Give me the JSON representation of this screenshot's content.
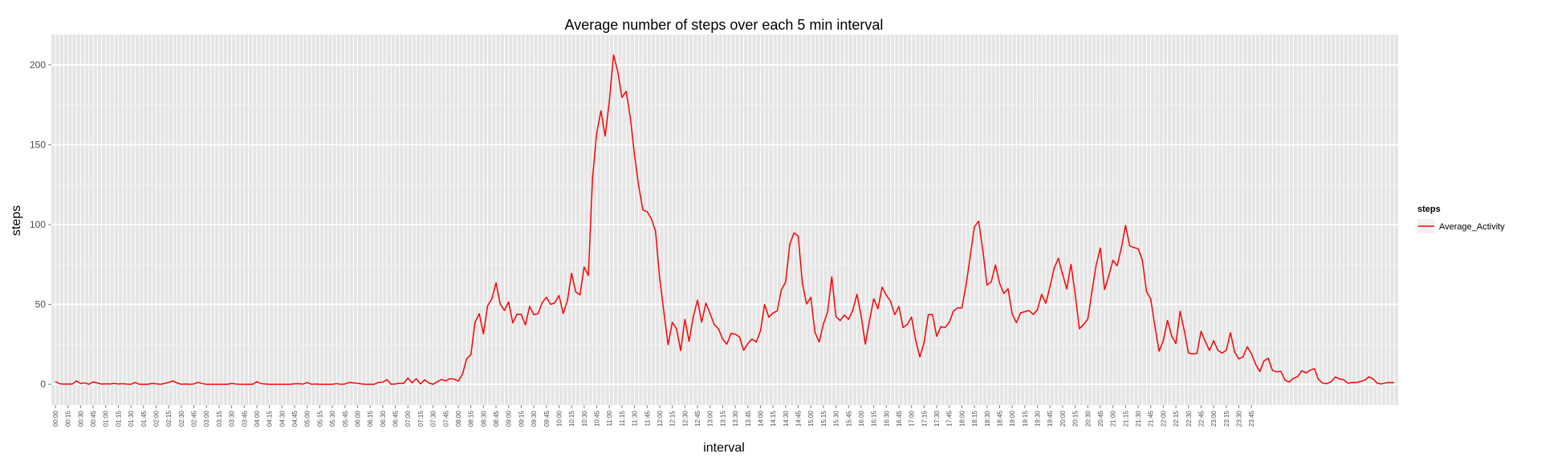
{
  "chart_data": {
    "type": "line",
    "title": "Average number of steps over each 5 min interval",
    "xlabel": "interval",
    "ylabel": "steps",
    "ylim": [
      -13,
      219
    ],
    "yticks": [
      0,
      50,
      100,
      150,
      200
    ],
    "grid": true,
    "legend": {
      "title": "steps",
      "placement": "right",
      "entries": [
        "Average_Activity"
      ]
    },
    "series": [
      {
        "name": "Average_Activity",
        "color": "#ff0000",
        "values": [
          1.7,
          0.3,
          0.1,
          0.2,
          0.1,
          2.1,
          0.5,
          0.9,
          0,
          1.5,
          0.8,
          0.1,
          0.3,
          0.2,
          0.5,
          0.2,
          0.4,
          0.1,
          0,
          1.1,
          0,
          0,
          0,
          0.5,
          0.3,
          0,
          0.5,
          1.2,
          2.1,
          0.8,
          0,
          0.2,
          0,
          0.2,
          1.2,
          0.4,
          0,
          0,
          0,
          0,
          0,
          0,
          0.5,
          0.2,
          0,
          0,
          0,
          0,
          1.6,
          0.4,
          0.2,
          0,
          0,
          0,
          0,
          0,
          0,
          0.3,
          0.4,
          0.1,
          1.1,
          0,
          0.2,
          0,
          0,
          0,
          0,
          0.4,
          0,
          0.2,
          1.1,
          0.9,
          0.6,
          0.2,
          0,
          0,
          0,
          1.2,
          1.3,
          2.9,
          0,
          0.2,
          0.7,
          0.5,
          3.9,
          0.9,
          3.5,
          0.2,
          2.8,
          0.8,
          0,
          1.6,
          3,
          2.1,
          3.5,
          3.2,
          2,
          6.3,
          16,
          18.5,
          38.9,
          44.2,
          31.6,
          49.2,
          53.5,
          63.5,
          50.2,
          46.2,
          51.6,
          38.4,
          43.9,
          43.8,
          37.2,
          48.7,
          43.6,
          44.2,
          51.1,
          54.5,
          50,
          51,
          55.6,
          44.3,
          52.3,
          69.5,
          57.8,
          56,
          73.4,
          68.2,
          129.4,
          157.5,
          171.2,
          155.4,
          177.3,
          206.2,
          195.9,
          179.6,
          183.4,
          167,
          143.5,
          124,
          109.1,
          108.1,
          103.7,
          95.9,
          66.2,
          45.2,
          24.8,
          38.8,
          34.8,
          21.1,
          40.6,
          26.9,
          42.4,
          52.7,
          38.9,
          50.8,
          44.3,
          37.4,
          34.7,
          28.3,
          25.1,
          31.9,
          31.4,
          29.7,
          21.3,
          25.5,
          28.3,
          26.5,
          33.4,
          49.9,
          42,
          44.6,
          46,
          59.2,
          63.9,
          87.7,
          94.8,
          92.8,
          63.4,
          50.2,
          54.5,
          32.4,
          26.5,
          37.7,
          45.1,
          67.3,
          42.3,
          39.9,
          43.3,
          40.7,
          46.2,
          56.4,
          42.8,
          25.1,
          40,
          53.5,
          47.3,
          60.8,
          55.8,
          51.9,
          43.6,
          48.7,
          35.5,
          37.5,
          42.1,
          27.5,
          17.1,
          26.1,
          43.6,
          43.7,
          30,
          36.1,
          35.5,
          38.8,
          45.9,
          47.8,
          47.8,
          62.1,
          80.3,
          98.7,
          102.1,
          83.9,
          62.1,
          64.1,
          74.7,
          63.2,
          56.9,
          59.8,
          43.9,
          38.6,
          44.7,
          45.5,
          46.2,
          43.7,
          46.6,
          56.3,
          50.7,
          61.2,
          72.7,
          78.9,
          68.9,
          59.7,
          75.1,
          56.5,
          34.8,
          37.5,
          40.7,
          58,
          74.7,
          85.3,
          59.3,
          67.8,
          77.7,
          74.2,
          85.3,
          99.5,
          86.6,
          85.6,
          84.9,
          77.8,
          58,
          53.4,
          36.3,
          20.7,
          27.4,
          40,
          30.2,
          25.5,
          45.7,
          33.5,
          19.6,
          19,
          19.3,
          33.2,
          26.8,
          21.2,
          27.3,
          21.3,
          19.5,
          21.3,
          32.3,
          20.2,
          15.9,
          17.2,
          23.5,
          19.2,
          12.5,
          8,
          14.7,
          16.3,
          8.7,
          7.8,
          8.1,
          2.6,
          1.4,
          3.7,
          4.8,
          8.5,
          7.1,
          8.8,
          9.8,
          2.9,
          0.7,
          0.4,
          1.6,
          4.6,
          3.3,
          2.8,
          0.6,
          1.2,
          1.1,
          1.8,
          2.6,
          4.7,
          3.3,
          0.6,
          0.2,
          0.9,
          1.1,
          1
        ]
      }
    ],
    "tick_labels": [
      "00:00",
      "00:15",
      "00:30",
      "00:45",
      "01:00",
      "01:15",
      "01:30",
      "01:45",
      "02:00",
      "02:15",
      "02:30",
      "02:45",
      "03:00",
      "03:15",
      "03:30",
      "03:45",
      "04:00",
      "04:15",
      "04:30",
      "04:45",
      "05:00",
      "05:15",
      "05:30",
      "05:45",
      "06:00",
      "06:15",
      "06:30",
      "06:45",
      "07:00",
      "07:15",
      "07:30",
      "07:45",
      "08:00",
      "08:15",
      "08:30",
      "08:45",
      "09:00",
      "09:15",
      "09:30",
      "09:45",
      "10:00",
      "10:15",
      "10:30",
      "10:45",
      "11:00",
      "11:15",
      "11:30",
      "11:45",
      "12:00",
      "12:15",
      "12:30",
      "12:45",
      "13:00",
      "13:15",
      "13:30",
      "13:45",
      "14:00",
      "14:15",
      "14:30",
      "14:45",
      "15:00",
      "15:15",
      "15:30",
      "15:45",
      "16:00",
      "16:15",
      "16:30",
      "16:45",
      "17:00",
      "17:15",
      "17:30",
      "17:45",
      "18:00",
      "18:15",
      "18:30",
      "18:45",
      "19:00",
      "19:15",
      "19:30",
      "19:45",
      "20:00",
      "20:15",
      "20:30",
      "20:45",
      "21:00",
      "21:15",
      "21:30",
      "21:45",
      "22:00",
      "22:15",
      "22:30",
      "22:45",
      "23:00",
      "23:15",
      "23:30",
      "23:45"
    ]
  }
}
